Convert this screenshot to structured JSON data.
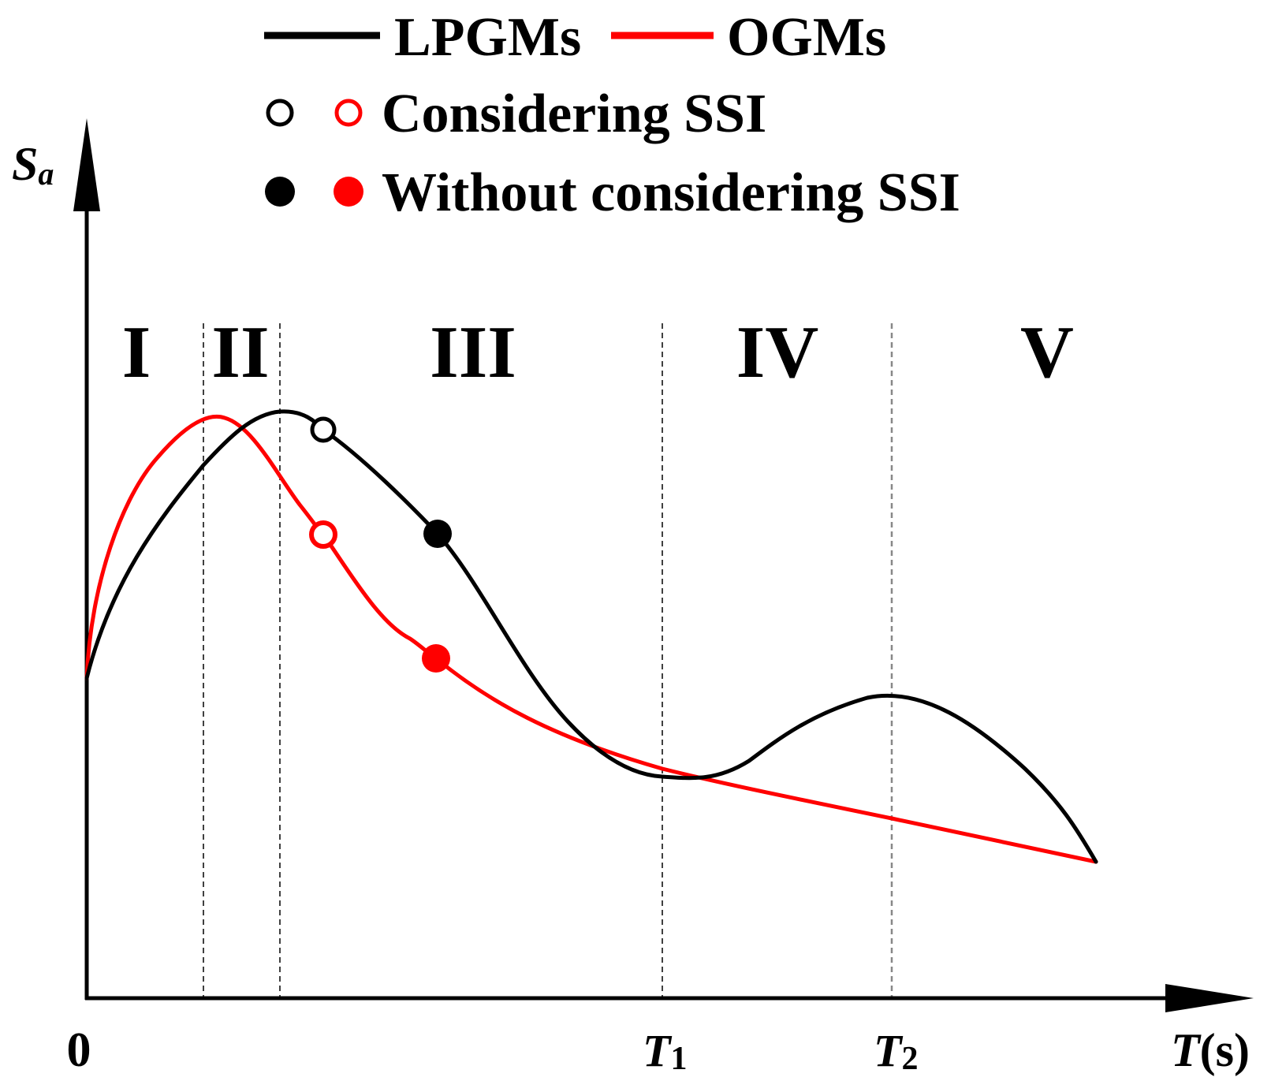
{
  "chart_data": {
    "type": "line",
    "title": "",
    "xlabel": "T(s)",
    "ylabel": "Sa",
    "x_axis": {
      "label_main": "T",
      "label_unit": "(s)",
      "origin_label": "0",
      "ticks": [
        {
          "main": "T",
          "sub": "1"
        },
        {
          "main": "T",
          "sub": "2"
        }
      ]
    },
    "y_axis": {
      "label_main": "S",
      "label_sub": "a"
    },
    "regions": [
      "I",
      "II",
      "III",
      "IV",
      "V"
    ],
    "series": [
      {
        "name": "LPGMs",
        "color": "#000000"
      },
      {
        "name": "OGMs",
        "color": "#ff0000"
      }
    ],
    "legend": {
      "line_entries": [
        "LPGMs",
        "OGMs"
      ],
      "marker_entries": [
        {
          "label": "Considering SSI",
          "style": "hollow"
        },
        {
          "label": "Without considering SSI",
          "style": "filled"
        }
      ],
      "position": "top"
    },
    "markers": [
      {
        "series": "LPGMs",
        "condition": "Considering SSI",
        "style": "hollow"
      },
      {
        "series": "LPGMs",
        "condition": "Without considering SSI",
        "style": "filled"
      },
      {
        "series": "OGMs",
        "condition": "Considering SSI",
        "style": "hollow"
      },
      {
        "series": "OGMs",
        "condition": "Without considering SSI",
        "style": "filled"
      }
    ]
  }
}
